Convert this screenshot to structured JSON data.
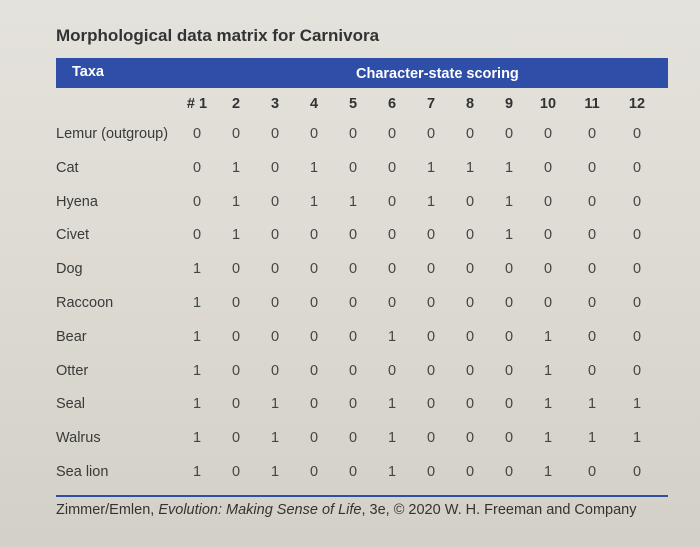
{
  "title": "Morphological data matrix for Carnivora",
  "header": {
    "taxa_label": "Taxa",
    "scoring_label": "Character-state scoring"
  },
  "columns": [
    "# 1",
    "2",
    "3",
    "4",
    "5",
    "6",
    "7",
    "8",
    "9",
    "10",
    "11",
    "12"
  ],
  "rows": [
    {
      "taxon": "Lemur (outgroup)",
      "values": [
        "0",
        "0",
        "0",
        "0",
        "0",
        "0",
        "0",
        "0",
        "0",
        "0",
        "0",
        "0"
      ]
    },
    {
      "taxon": "Cat",
      "values": [
        "0",
        "1",
        "0",
        "1",
        "0",
        "0",
        "1",
        "1",
        "1",
        "0",
        "0",
        "0"
      ]
    },
    {
      "taxon": "Hyena",
      "values": [
        "0",
        "1",
        "0",
        "1",
        "1",
        "0",
        "1",
        "0",
        "1",
        "0",
        "0",
        "0"
      ]
    },
    {
      "taxon": "Civet",
      "values": [
        "0",
        "1",
        "0",
        "0",
        "0",
        "0",
        "0",
        "0",
        "1",
        "0",
        "0",
        "0"
      ]
    },
    {
      "taxon": "Dog",
      "values": [
        "1",
        "0",
        "0",
        "0",
        "0",
        "0",
        "0",
        "0",
        "0",
        "0",
        "0",
        "0"
      ]
    },
    {
      "taxon": "Raccoon",
      "values": [
        "1",
        "0",
        "0",
        "0",
        "0",
        "0",
        "0",
        "0",
        "0",
        "0",
        "0",
        "0"
      ]
    },
    {
      "taxon": "Bear",
      "values": [
        "1",
        "0",
        "0",
        "0",
        "0",
        "1",
        "0",
        "0",
        "0",
        "1",
        "0",
        "0"
      ]
    },
    {
      "taxon": "Otter",
      "values": [
        "1",
        "0",
        "0",
        "0",
        "0",
        "0",
        "0",
        "0",
        "0",
        "1",
        "0",
        "0"
      ]
    },
    {
      "taxon": "Seal",
      "values": [
        "1",
        "0",
        "1",
        "0",
        "0",
        "1",
        "0",
        "0",
        "0",
        "1",
        "1",
        "1"
      ]
    },
    {
      "taxon": "Walrus",
      "values": [
        "1",
        "0",
        "1",
        "0",
        "0",
        "1",
        "0",
        "0",
        "0",
        "1",
        "1",
        "1"
      ]
    },
    {
      "taxon": "Sea lion",
      "values": [
        "1",
        "0",
        "1",
        "0",
        "0",
        "1",
        "0",
        "0",
        "0",
        "1",
        "0",
        "0"
      ]
    }
  ],
  "citation_pre": "Zimmer/Emlen, ",
  "citation_italic": "Evolution: Making Sense of Life",
  "citation_post": ", 3e, © 2020 W. H. Freeman and Company",
  "colors": {
    "header_bar": "#2f4ea8",
    "header_text": "#ffffff",
    "rule": "#2f4ea8"
  }
}
